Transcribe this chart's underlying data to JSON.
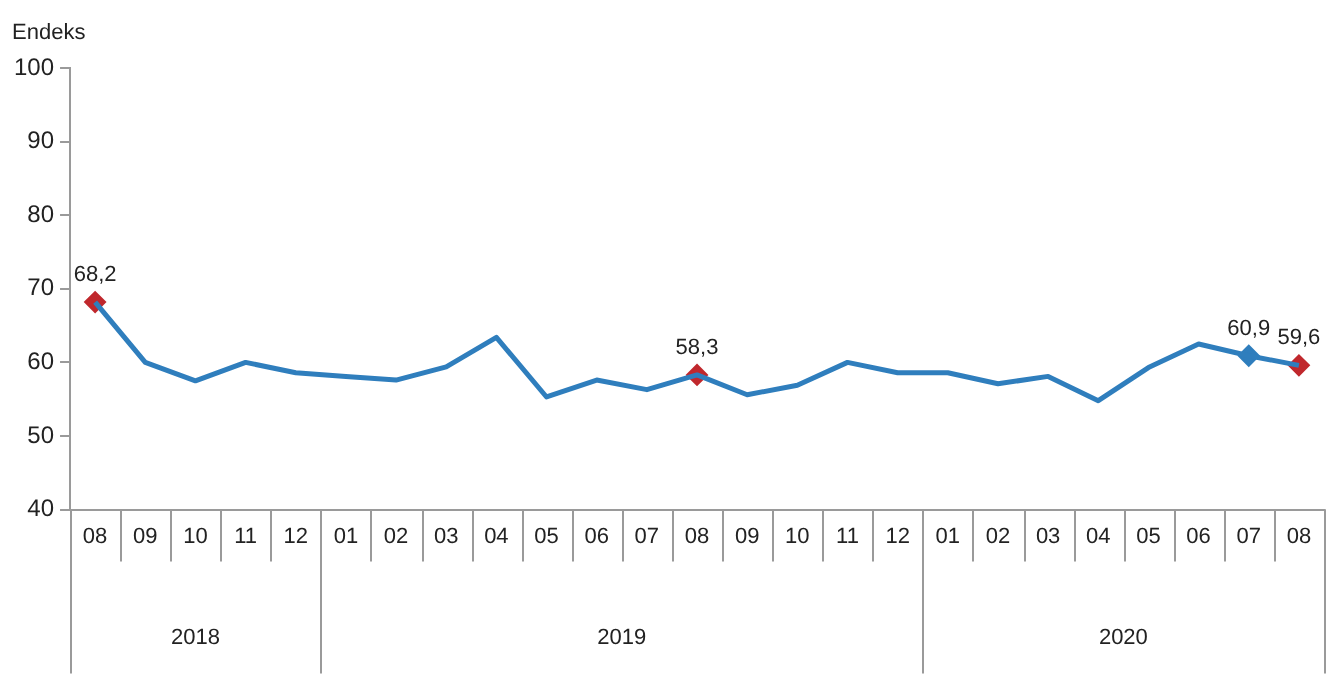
{
  "chart_data": {
    "type": "line",
    "ylabel": "Endeks",
    "categories": [
      "08",
      "09",
      "10",
      "11",
      "12",
      "01",
      "02",
      "03",
      "04",
      "05",
      "06",
      "07",
      "08",
      "09",
      "10",
      "11",
      "12",
      "01",
      "02",
      "03",
      "04",
      "05",
      "06",
      "07",
      "08"
    ],
    "series": [
      {
        "color": "#2f7ebd",
        "marker": "none",
        "values": [
          68.2,
          60,
          57.5,
          60,
          58.6,
          58.1,
          57.6,
          59.4,
          63.4,
          55.3,
          57.6,
          56.3,
          58.3,
          55.6,
          56.9,
          60,
          58.6,
          58.6,
          57.1,
          58.1,
          54.8,
          59.3,
          62.5,
          60.9,
          59.6
        ],
        "value_labels": [
          "68,2",
          null,
          null,
          null,
          null,
          null,
          null,
          null,
          null,
          null,
          null,
          null,
          "58,3",
          null,
          null,
          null,
          null,
          null,
          null,
          null,
          null,
          null,
          null,
          "60,9",
          "59,6"
        ]
      },
      {
        "type": "scatter",
        "marker": "diamond",
        "colors": [
          "#c0282d",
          null,
          null,
          null,
          null,
          null,
          null,
          null,
          null,
          null,
          null,
          null,
          "#c0282d",
          null,
          null,
          null,
          null,
          null,
          null,
          null,
          null,
          null,
          null,
          "#2f7ebd",
          "#c0282d"
        ],
        "values": [
          68.2,
          null,
          null,
          null,
          null,
          null,
          null,
          null,
          null,
          null,
          null,
          null,
          58.3,
          null,
          null,
          null,
          null,
          null,
          null,
          null,
          null,
          null,
          null,
          60.9,
          59.6
        ]
      }
    ],
    "annotations": [
      "2018",
      "2019",
      "2020"
    ],
    "ylim": [
      40,
      100
    ],
    "yticks": [
      40,
      50,
      60,
      70,
      80,
      90,
      100
    ],
    "grid": false,
    "legend": false
  }
}
